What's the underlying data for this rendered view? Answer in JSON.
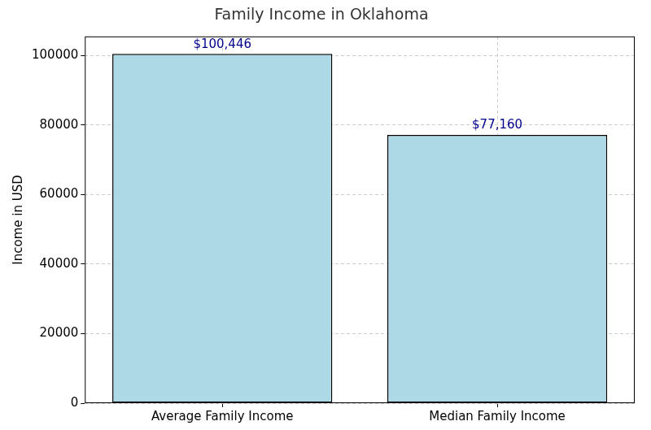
{
  "chart_data": {
    "type": "bar",
    "title": "Family Income in Oklahoma",
    "y_label": "Income in USD",
    "categories": [
      "Average Family Income",
      "Median Family Income"
    ],
    "values": [
      100446,
      77160
    ],
    "value_labels": [
      "$100,446",
      "$77,160"
    ],
    "data_labels": true,
    "color": "#add8e6",
    "ylim": [
      0,
      105468
    ],
    "yticks": [
      0,
      20000,
      40000,
      60000,
      80000,
      100000
    ],
    "grid": true
  }
}
